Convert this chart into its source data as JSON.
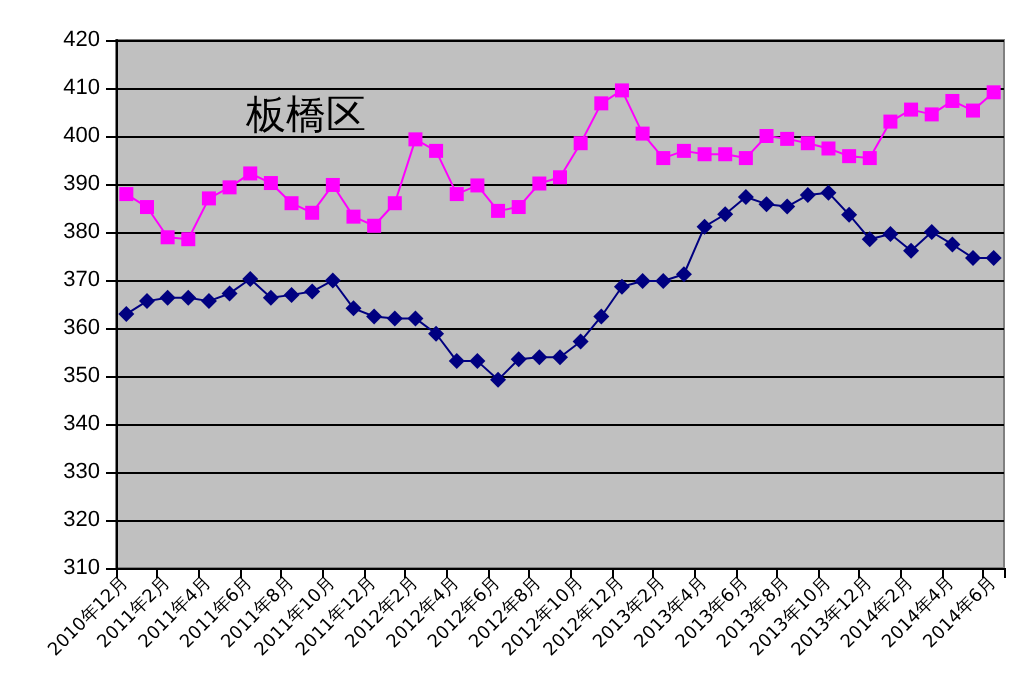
{
  "chart_data": {
    "type": "line",
    "title": "板橋区",
    "categories": [
      "2010年12月",
      null,
      "2011年2月",
      null,
      "2011年4月",
      null,
      "2011年6月",
      null,
      "2011年8月",
      null,
      "2011年10月",
      null,
      "2011年12月",
      null,
      "2012年2月",
      null,
      "2012年4月",
      null,
      "2012年6月",
      null,
      "2012年8月",
      null,
      "2012年10月",
      null,
      "2012年12月",
      null,
      "2013年2月",
      null,
      "2013年4月",
      null,
      "2013年6月",
      null,
      "2013年8月",
      null,
      "2013年10月",
      null,
      "2013年12月",
      null,
      "2014年2月",
      null,
      "2014年4月",
      null,
      "2014年6月"
    ],
    "series": [
      {
        "color": "#ff00ff",
        "marker": "square",
        "values": [
          387.9,
          385.2,
          378.9,
          378.5,
          387,
          389.3,
          392.2,
          390.2,
          386,
          384,
          389.8,
          383.2,
          381.3,
          386,
          399.3,
          396.9,
          387.9,
          389.7,
          384.4,
          385.2,
          390.1,
          391.4,
          398.5,
          406.8,
          409.5,
          400.5,
          395.4,
          396.9,
          396.2,
          396.2,
          395.4,
          400,
          399.4,
          398.5,
          397.4,
          395.8,
          395.4,
          403,
          405.5,
          404.5,
          407.3,
          405.3,
          409.1
        ]
      },
      {
        "color": "#000080",
        "marker": "diamond",
        "values": [
          362.9,
          365.6,
          366.3,
          366.3,
          365.6,
          367.2,
          370.2,
          366.3,
          366.9,
          367.6,
          369.9,
          364.1,
          362.4,
          362,
          362,
          358.8,
          353.1,
          353.1,
          349.2,
          353.5,
          353.9,
          353.9,
          357.2,
          362.4,
          368.6,
          369.8,
          369.8,
          371.2,
          381.1,
          383.7,
          387.3,
          385.8,
          385.3,
          387.7,
          388.2,
          383.6,
          378.5,
          379.6,
          376.1,
          380,
          377.4,
          374.6,
          374.6
        ]
      }
    ],
    "ylim": [
      310,
      420
    ],
    "yticks": [
      310,
      320,
      330,
      340,
      350,
      360,
      370,
      380,
      390,
      400,
      410,
      420
    ],
    "grid": "y"
  }
}
